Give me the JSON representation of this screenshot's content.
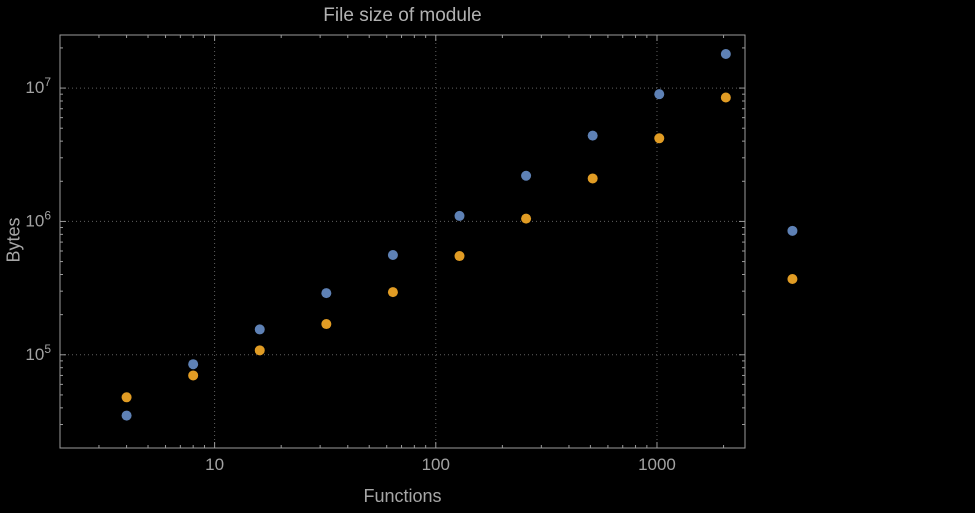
{
  "chart_data": {
    "type": "scatter",
    "title": "File size of module",
    "xlabel": "Functions",
    "ylabel": "Bytes",
    "x_scale": "log",
    "y_scale": "log",
    "xlim": [
      2,
      2500
    ],
    "ylim": [
      20000,
      25000000
    ],
    "grid": "dotted",
    "legend_position": "none",
    "x_ticks": [
      10,
      100,
      1000
    ],
    "x_tick_labels": [
      "10",
      "100",
      "1000"
    ],
    "y_ticks": [
      100000,
      1000000,
      10000000
    ],
    "y_tick_labels": [
      {
        "base": "10",
        "exp": "5"
      },
      {
        "base": "10",
        "exp": "6"
      },
      {
        "base": "10",
        "exp": "7"
      }
    ],
    "series": [
      {
        "name": "series-blue",
        "color": "#5e81b5",
        "x": [
          4,
          8,
          16,
          32,
          64,
          128,
          256,
          512,
          1024,
          2048,
          4096
        ],
        "y": [
          35000,
          85000,
          155000,
          290000,
          560000,
          1100000,
          2200000,
          4400000,
          9000000,
          18000000,
          850000
        ]
      },
      {
        "name": "series-orange",
        "color": "#e19c24",
        "x": [
          4,
          8,
          16,
          32,
          64,
          128,
          256,
          512,
          1024,
          2048,
          4096
        ],
        "y": [
          48000,
          70000,
          108000,
          170000,
          295000,
          550000,
          1050000,
          2100000,
          4200000,
          8500000,
          370000
        ]
      }
    ]
  },
  "colors": {
    "background": "#000000",
    "frame": "#9b9b9b",
    "grid": "#606060",
    "tick_label": "#a2a2a2",
    "title": "#b2b2b2",
    "axis_label": "#a6a6a6"
  }
}
